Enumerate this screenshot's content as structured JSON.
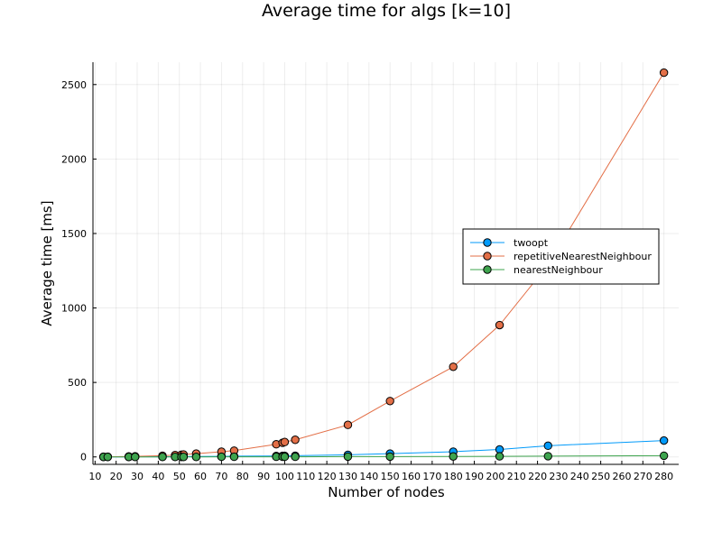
{
  "chart_data": {
    "type": "line",
    "title": "Average time for algs [k=10]",
    "xlabel": "Number of nodes",
    "ylabel": "Average time [ms]",
    "xlim": [
      9,
      287
    ],
    "ylim": [
      -50,
      2650
    ],
    "xticks": [
      10,
      20,
      30,
      40,
      50,
      60,
      70,
      80,
      90,
      100,
      110,
      120,
      130,
      140,
      150,
      160,
      170,
      180,
      190,
      200,
      210,
      220,
      230,
      240,
      250,
      260,
      270,
      280
    ],
    "yticks": [
      0,
      500,
      1000,
      1500,
      2000,
      2500
    ],
    "grid": true,
    "legend_position": "right",
    "series": [
      {
        "name": "twoopt",
        "color": "#009AFA",
        "x": [
          14,
          16,
          26,
          29,
          42,
          48,
          51,
          52,
          58,
          70,
          76,
          96,
          99,
          100,
          105,
          130,
          150,
          180,
          202,
          225,
          280
        ],
        "y": [
          0,
          0,
          0,
          1,
          1,
          2,
          2,
          2,
          3,
          4,
          5,
          6,
          7,
          7,
          8,
          14,
          22,
          35,
          50,
          75,
          110
        ]
      },
      {
        "name": "repetitiveNearestNeighbour",
        "color": "#E36F47",
        "x": [
          14,
          16,
          26,
          29,
          42,
          48,
          51,
          52,
          58,
          70,
          76,
          96,
          99,
          100,
          105,
          130,
          150,
          180,
          202,
          225,
          280
        ],
        "y": [
          1,
          1,
          3,
          4,
          8,
          12,
          15,
          16,
          22,
          35,
          42,
          85,
          95,
          100,
          115,
          215,
          375,
          605,
          885,
          1290,
          2580
        ]
      },
      {
        "name": "nearestNeighbour",
        "color": "#3EA44E",
        "x": [
          14,
          16,
          26,
          29,
          42,
          48,
          51,
          52,
          58,
          70,
          76,
          96,
          99,
          100,
          105,
          130,
          150,
          180,
          202,
          225,
          280
        ],
        "y": [
          0,
          0,
          0,
          0,
          0,
          0,
          0,
          0,
          0,
          1,
          1,
          1,
          1,
          1,
          1,
          2,
          2,
          3,
          4,
          5,
          8
        ]
      }
    ]
  }
}
